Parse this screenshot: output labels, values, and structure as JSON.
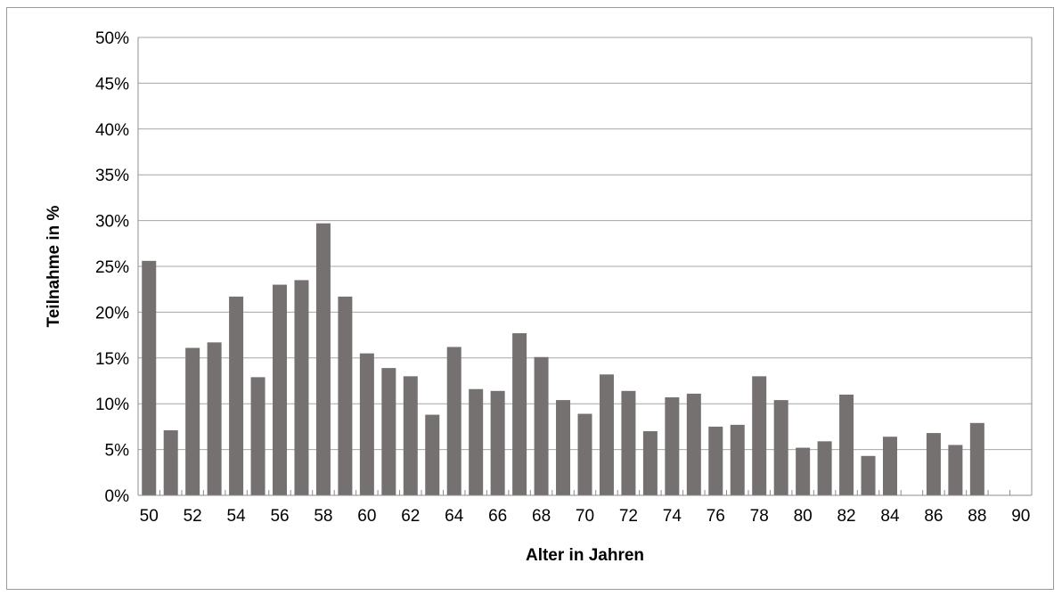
{
  "chart_data": {
    "type": "bar",
    "title": "",
    "xlabel": "Alter in Jahren",
    "ylabel": "Teilnahme in %",
    "ylim": [
      0,
      50
    ],
    "y_ticks": [
      0,
      5,
      10,
      15,
      20,
      25,
      30,
      35,
      40,
      45,
      50
    ],
    "y_tick_labels": [
      "0%",
      "5%",
      "10%",
      "15%",
      "20%",
      "25%",
      "30%",
      "35%",
      "40%",
      "45%",
      "50%"
    ],
    "x_range": [
      50,
      90
    ],
    "x_tick_labels": [
      "50",
      "52",
      "54",
      "56",
      "58",
      "60",
      "62",
      "64",
      "66",
      "68",
      "70",
      "72",
      "74",
      "76",
      "78",
      "80",
      "82",
      "84",
      "86",
      "88",
      "90"
    ],
    "categories": [
      50,
      51,
      52,
      53,
      54,
      55,
      56,
      57,
      58,
      59,
      60,
      61,
      62,
      63,
      64,
      65,
      66,
      67,
      68,
      69,
      70,
      71,
      72,
      73,
      74,
      75,
      76,
      77,
      78,
      79,
      80,
      81,
      82,
      83,
      84,
      85,
      86,
      87,
      88,
      89,
      90
    ],
    "values": [
      25.6,
      7.1,
      16.1,
      16.7,
      21.7,
      12.9,
      23.0,
      23.5,
      29.7,
      21.7,
      15.5,
      13.9,
      13.0,
      8.8,
      16.2,
      11.6,
      11.4,
      17.7,
      15.1,
      10.4,
      8.9,
      13.2,
      11.4,
      7.0,
      10.7,
      11.1,
      7.5,
      7.7,
      13.0,
      10.4,
      5.2,
      5.9,
      11.0,
      4.3,
      6.4,
      0,
      6.8,
      5.5,
      7.9,
      0,
      0
    ],
    "grid": true,
    "bar_color": "#767171",
    "grid_color": "#a6a6a6"
  }
}
